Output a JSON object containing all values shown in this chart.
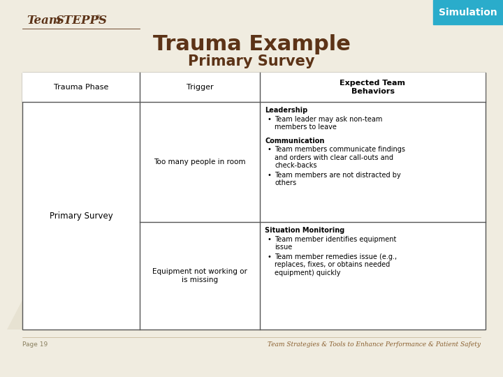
{
  "bg_color": "#f0ece0",
  "title1": "Trauma Example",
  "title2": "Primary Survey",
  "title1_color": "#5c3317",
  "title2_color": "#5c3317",
  "sim_box_color": "#2aaccb",
  "sim_text": "Simulation",
  "header_col1": "Trauma Phase",
  "header_col2": "Trigger",
  "header_col3": "Expected Team\nBehaviors",
  "col1_text": "Primary Survey",
  "trigger1": "Too many people in room",
  "trigger2": "Equipment not working or\nis missing",
  "etb1_bold": "Leadership",
  "etb1_bullet": "Team leader may ask non-team\nmembers to leave",
  "etb2_bold": "Communication",
  "etb2_bullets": [
    "Team members communicate findings\nand orders with clear call-outs and\ncheck-backs",
    "Team members are not distracted by\nothers"
  ],
  "etb3_bold": "Situation Monitoring",
  "etb3_bullets": [
    "Team member identifies equipment\nissue",
    "Team member remedies issue (e.g.,\nreplaces, fixes, or obtains needed\nequipment) quickly"
  ],
  "footer_left": "Page 19",
  "footer_right": "Team Strategies & Tools to Enhance Performance & Patient Safety",
  "footer_color": "#8a8060",
  "footer_right_color": "#8a6030",
  "table_border_color": "#555555",
  "logo_italic": "Team",
  "logo_bold": "STEPPS",
  "logo_reg": "®",
  "logo_color": "#5c3317"
}
